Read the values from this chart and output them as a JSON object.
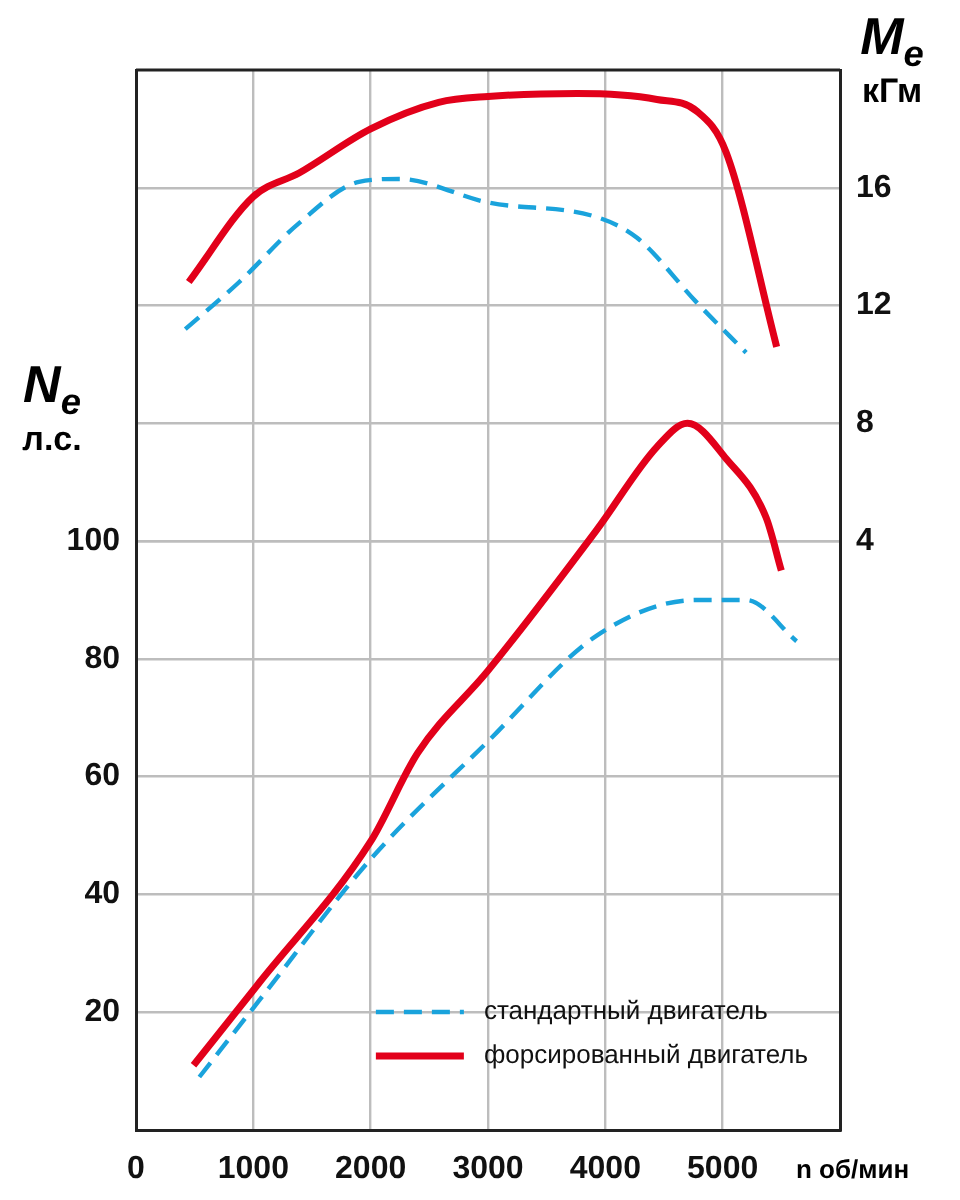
{
  "chart_data": {
    "type": "line",
    "xlabel": "n об/мин",
    "ylabel": "N$_{e}$ л.с.",
    "y2label": "M$_{e}$ кГм",
    "xlim": [
      0,
      6000
    ],
    "xticks": [
      0,
      1000,
      2000,
      3000,
      4000,
      5000
    ],
    "ylim": [
      0,
      180
    ],
    "yticks": [
      20,
      40,
      60,
      80,
      100
    ],
    "y2lim": [
      -16,
      20
    ],
    "y2ticks": [
      4,
      8,
      12,
      16
    ],
    "grid": true,
    "legend": "bottom right",
    "marker": "none",
    "series": [
      {
        "name": "стандартный двигатель",
        "color": "#1aa3dc",
        "line_style": "dashed",
        "x": [
          540,
          1050,
          2000,
          3000,
          3930,
          4780,
          5200,
          5630
        ],
        "values": [
          9,
          22,
          46,
          66,
          84,
          90,
          90,
          83
        ]
      },
      {
        "name": "форсированный двигатель",
        "color": "#e2001a",
        "line_style": "solid",
        "x": [
          490,
          1050,
          2000,
          2400,
          3000,
          3930,
          4440,
          4700,
          5030,
          5370,
          5500
        ],
        "values": [
          11,
          25,
          49,
          64,
          78,
          102,
          116,
          120,
          114,
          104,
          95
        ]
      },
      {
        "color": "#1aa3dc",
        "line_style": "dashed",
        "axis": "y2",
        "x": [
          420,
          880,
          1390,
          1900,
          2240,
          3000,
          3930,
          4270,
          4780,
          5200
        ],
        "values": [
          11.2,
          12.8,
          14.8,
          16.2,
          16.3,
          15.5,
          15.0,
          14.3,
          12.1,
          10.4
        ]
      },
      {
        "color": "#e2001a",
        "line_style": "solid",
        "axis": "y2",
        "x": [
          450,
          1000,
          1390,
          2000,
          2580,
          3000,
          3760,
          4440,
          4780,
          5030,
          5460
        ],
        "values": [
          12.8,
          15.7,
          16.5,
          18.0,
          18.9,
          19.1,
          19.2,
          19.0,
          18.6,
          17.2,
          10.6
        ]
      }
    ]
  }
}
